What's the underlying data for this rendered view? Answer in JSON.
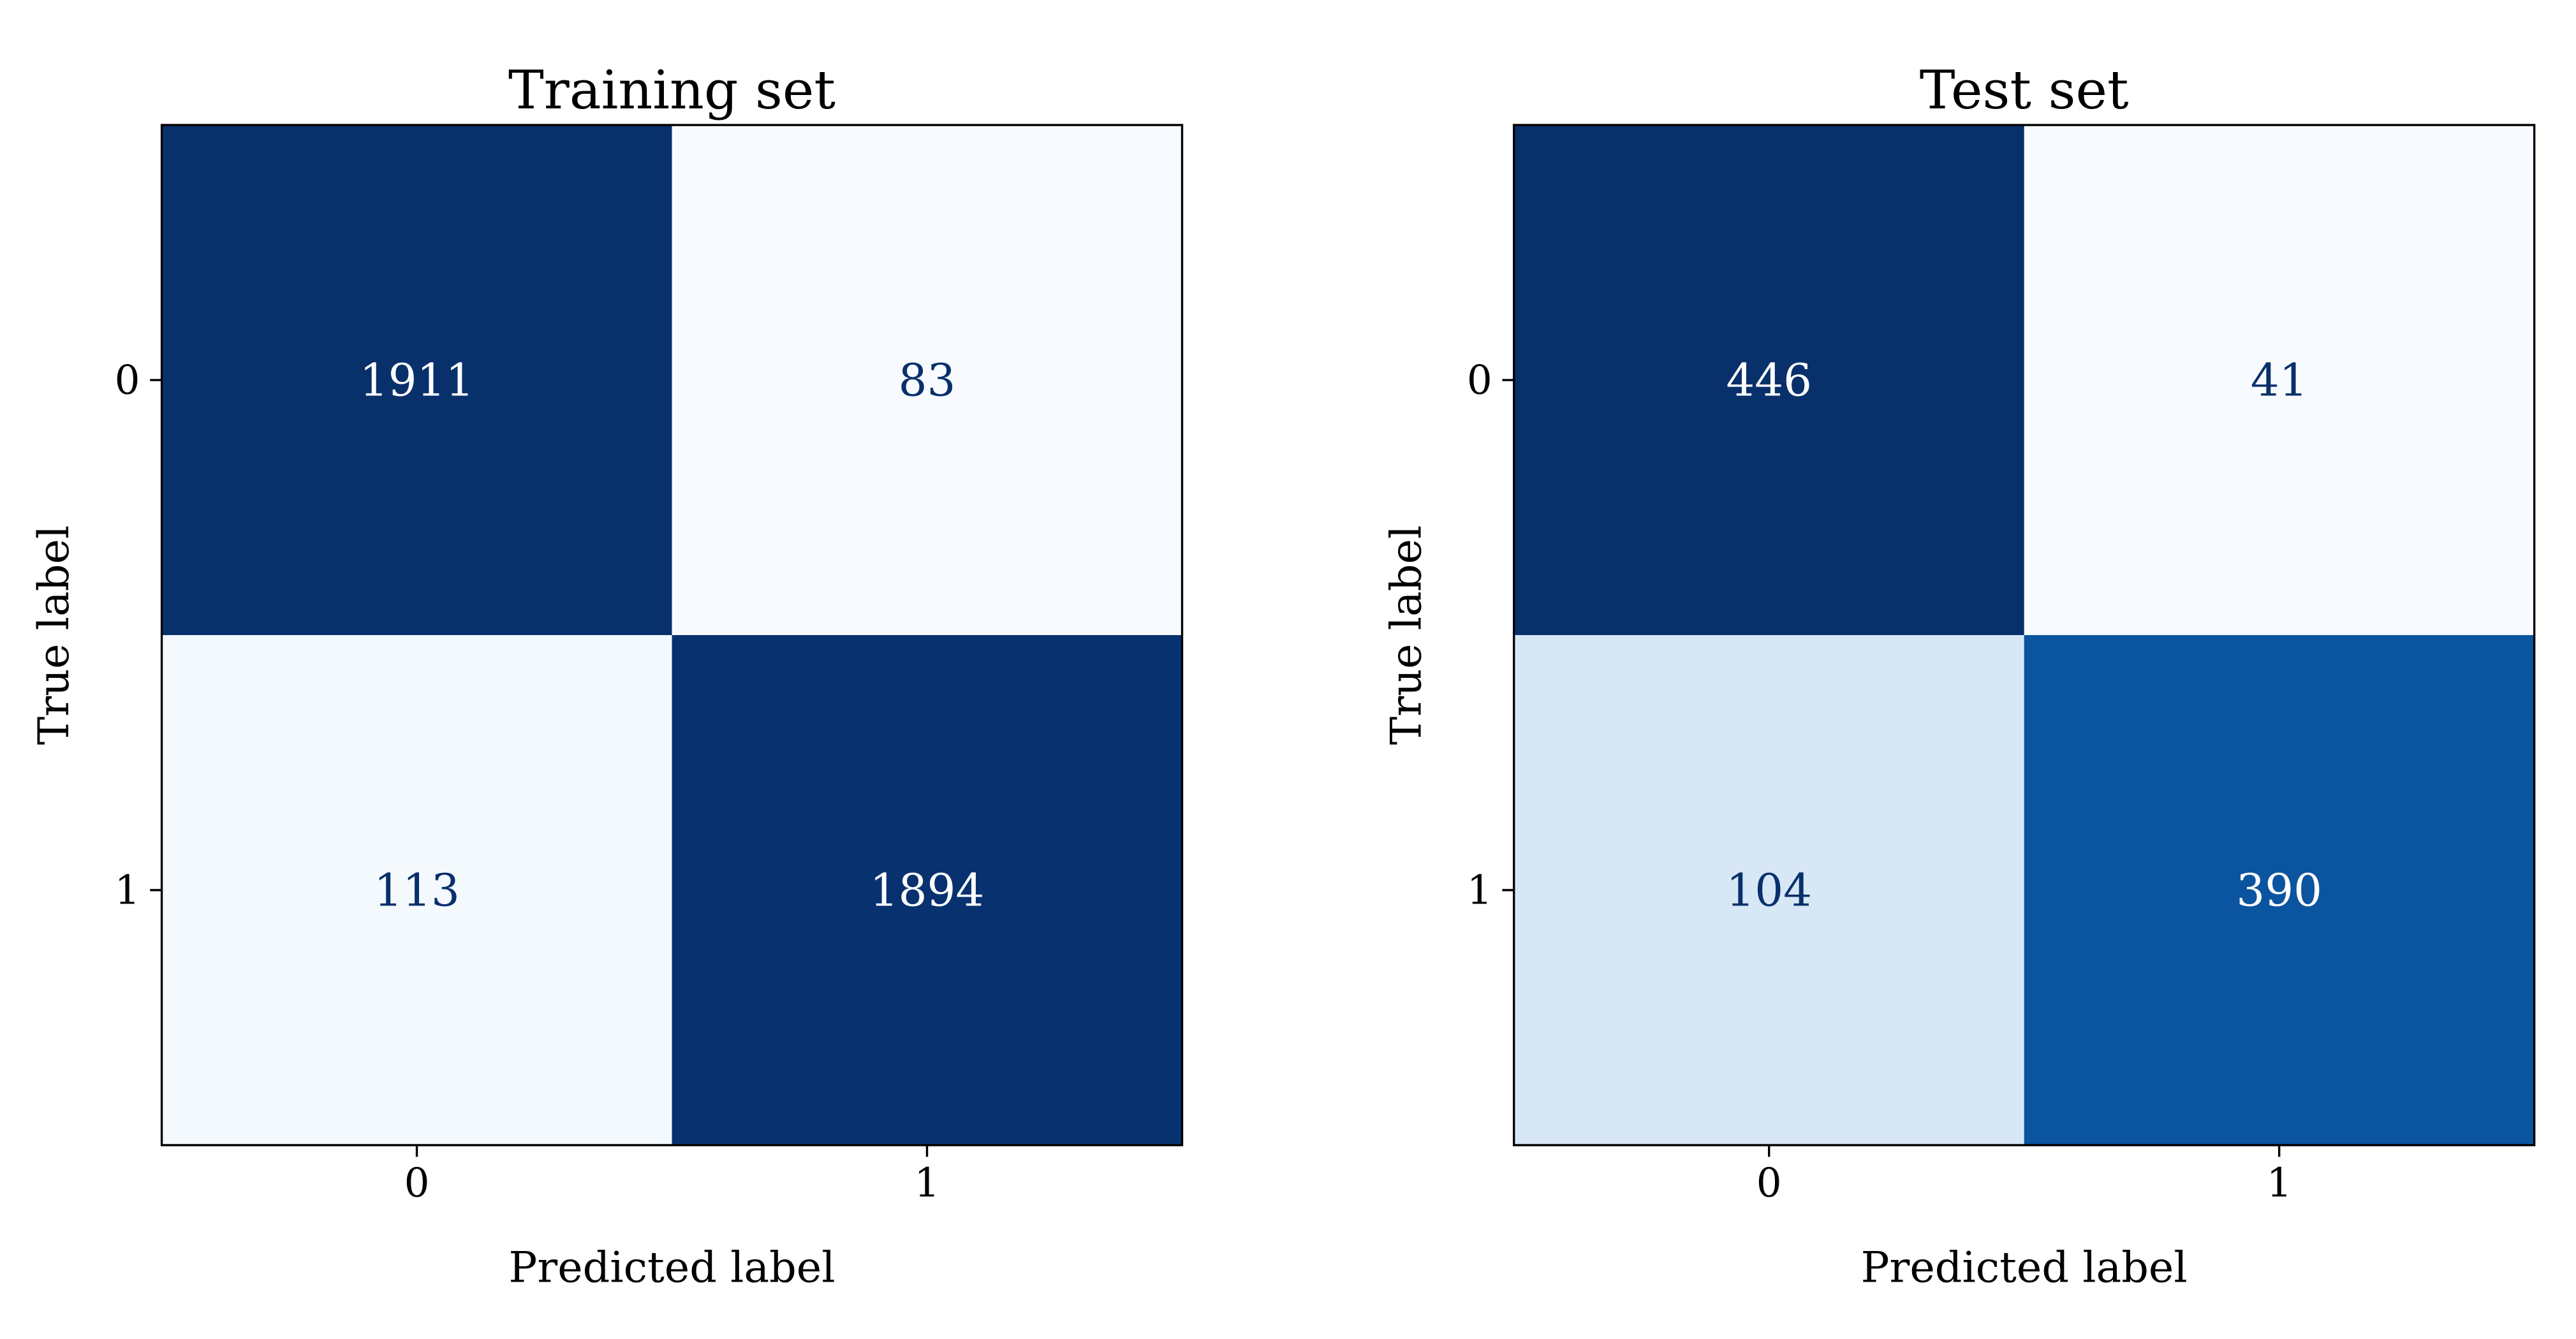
{
  "chart_data": [
    {
      "type": "heatmap",
      "title": "Training set",
      "xlabel": "Predicted label",
      "ylabel": "True label",
      "x_categories": [
        "0",
        "1"
      ],
      "y_categories": [
        "0",
        "1"
      ],
      "values": [
        [
          1911,
          83
        ],
        [
          113,
          1894
        ]
      ],
      "colormap": "Blues",
      "colorbar": false,
      "grid": false
    },
    {
      "type": "heatmap",
      "title": "Test set",
      "xlabel": "Predicted label",
      "ylabel": "True label",
      "x_categories": [
        "0",
        "1"
      ],
      "y_categories": [
        "0",
        "1"
      ],
      "values": [
        [
          446,
          41
        ],
        [
          104,
          390
        ]
      ],
      "colormap": "Blues",
      "colorbar": false,
      "grid": false
    }
  ],
  "colors": {
    "light_text": "#ffffff",
    "dark_text": "#08306b",
    "axis": "#000000"
  }
}
